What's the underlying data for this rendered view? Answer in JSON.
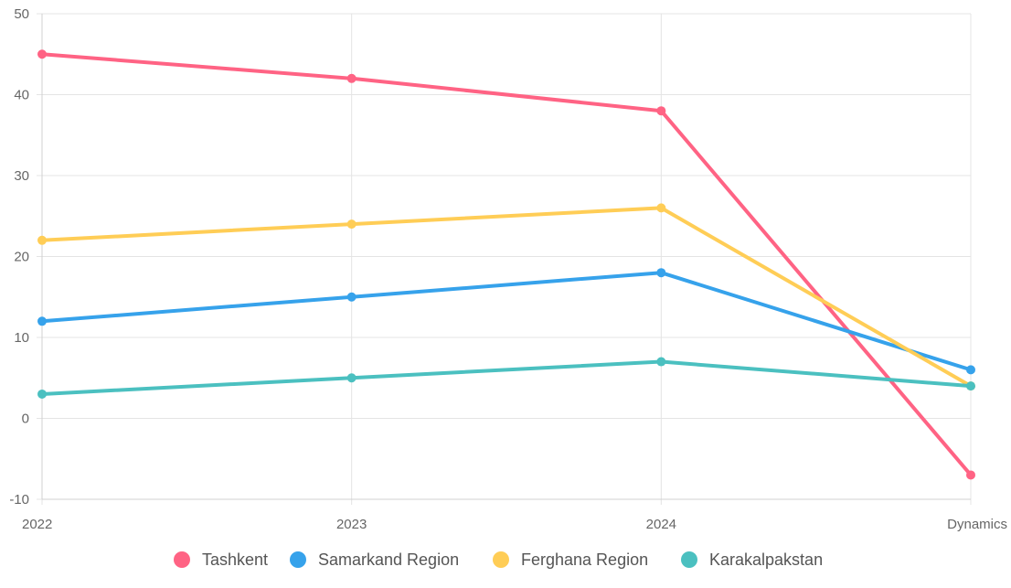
{
  "chart_data": {
    "type": "line",
    "categories": [
      "2022",
      "2023",
      "2024",
      "Dynamics"
    ],
    "ylim": [
      -10,
      50
    ],
    "yticks": [
      -10,
      0,
      10,
      20,
      30,
      40,
      50
    ],
    "grid": true,
    "legend_position": "bottom",
    "series": [
      {
        "name": "Tashkent",
        "color": "#ff6384",
        "values": [
          45,
          42,
          38,
          -7
        ]
      },
      {
        "name": "Samarkand Region",
        "color": "#36a2eb",
        "values": [
          12,
          15,
          18,
          6
        ]
      },
      {
        "name": "Ferghana Region",
        "color": "#ffcd56",
        "values": [
          22,
          24,
          26,
          4
        ]
      },
      {
        "name": "Karakalpakstan",
        "color": "#4bc0c0",
        "values": [
          3,
          5,
          7,
          4
        ]
      }
    ]
  }
}
